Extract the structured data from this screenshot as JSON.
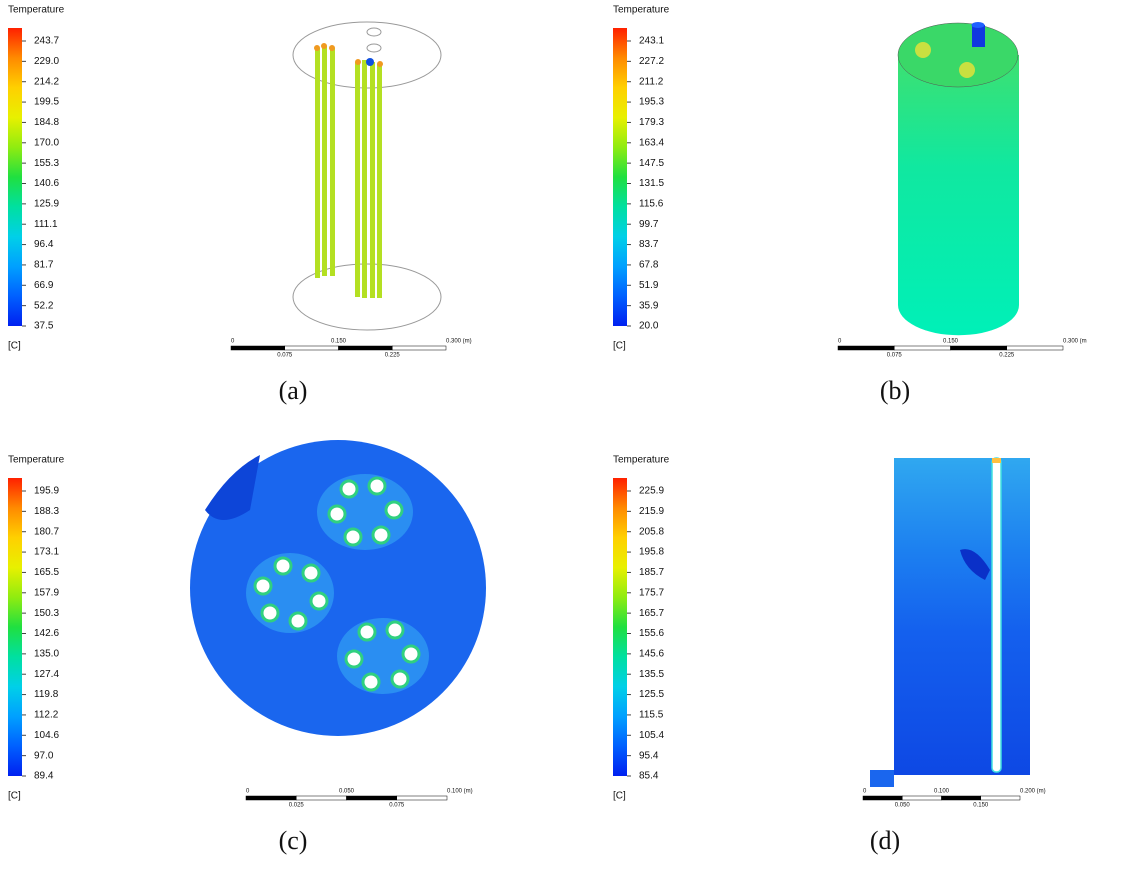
{
  "panels": [
    {
      "legend": {
        "title": "Temperature",
        "ticks": [
          "243.7",
          "229.0",
          "214.2",
          "199.5",
          "184.8",
          "170.0",
          "155.3",
          "140.6",
          "125.9",
          "111.1",
          "96.4",
          "81.7",
          "66.9",
          "52.2",
          "37.5"
        ],
        "unit": "[C]"
      },
      "scale": {
        "top": [
          "0",
          "0.150",
          "0.300 (m)"
        ],
        "bottom": [
          "0.075",
          "0.225"
        ]
      },
      "caption": "(a)"
    },
    {
      "legend": {
        "title": "Temperature",
        "ticks": [
          "243.1",
          "227.2",
          "211.2",
          "195.3",
          "179.3",
          "163.4",
          "147.5",
          "131.5",
          "115.6",
          "99.7",
          "83.7",
          "67.8",
          "51.9",
          "35.9",
          "20.0"
        ],
        "unit": "[C]"
      },
      "scale": {
        "top": [
          "0",
          "0.150",
          "0.300 (m"
        ],
        "bottom": [
          "0.075",
          "0.225"
        ]
      },
      "caption": "(b)"
    },
    {
      "legend": {
        "title": "Temperature",
        "ticks": [
          "195.9",
          "188.3",
          "180.7",
          "173.1",
          "165.5",
          "157.9",
          "150.3",
          "142.6",
          "135.0",
          "127.4",
          "119.8",
          "112.2",
          "104.6",
          "97.0",
          "89.4"
        ],
        "unit": "[C]"
      },
      "scale": {
        "top": [
          "0",
          "0.050",
          "0.100 (m)"
        ],
        "bottom": [
          "0.025",
          "0.075"
        ]
      },
      "caption": "(c)"
    },
    {
      "legend": {
        "title": "Temperature",
        "ticks": [
          "225.9",
          "215.9",
          "205.8",
          "195.8",
          "185.7",
          "175.7",
          "165.7",
          "155.6",
          "145.6",
          "135.5",
          "125.5",
          "115.5",
          "105.4",
          "95.4",
          "85.4"
        ],
        "unit": "[C]"
      },
      "scale": {
        "top": [
          "0",
          "0.100",
          "0.200 (m)"
        ],
        "bottom": [
          "0.050",
          "0.150"
        ]
      },
      "caption": "(d)"
    }
  ]
}
